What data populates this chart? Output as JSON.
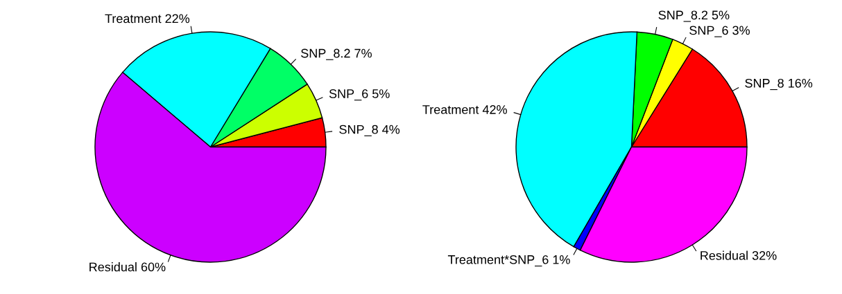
{
  "chart_data": [
    {
      "type": "pie",
      "categories": [
        "SNP_8 4%",
        "SNP_6 5%",
        "SNP_8.2 7%",
        "Treatment 22%",
        "Residual 60%"
      ],
      "values": [
        4,
        5,
        7,
        22,
        60
      ],
      "colors": [
        "#ff0000",
        "#ccff00",
        "#00ff66",
        "#00ffff",
        "#cc00ff"
      ]
    },
    {
      "type": "pie",
      "categories": [
        "SNP_8 16%",
        "SNP_6 3%",
        "SNP_8.2 5%",
        "Treatment 42%",
        "Treatment*SNP_6 1%",
        "Residual 32%"
      ],
      "values": [
        16,
        3,
        5,
        42,
        1,
        32
      ],
      "colors": [
        "#ff0000",
        "#ffff00",
        "#00ff00",
        "#00ffff",
        "#0000ff",
        "#ff00ff"
      ]
    }
  ]
}
